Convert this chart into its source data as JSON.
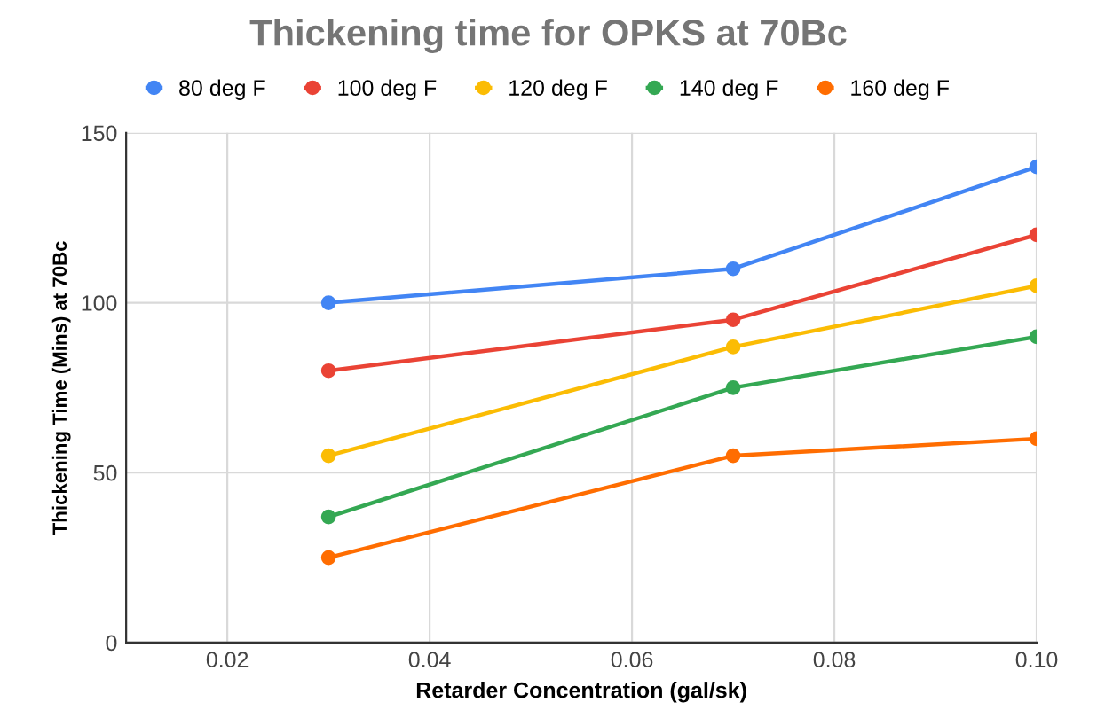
{
  "chart_data": {
    "type": "line",
    "title": "Thickening time for OPKS at 70Bc",
    "xlabel": "Retarder Concentration (gal/sk)",
    "ylabel": "Thickening Time (Mins) at 70Bc",
    "x": [
      0.03,
      0.07,
      0.1
    ],
    "series": [
      {
        "name": "80 deg F",
        "color": "#4285f4",
        "values": [
          100,
          110,
          140
        ]
      },
      {
        "name": "100 deg F",
        "color": "#ea4335",
        "values": [
          80,
          95,
          120
        ]
      },
      {
        "name": "120 deg F",
        "color": "#fbbc04",
        "values": [
          55,
          87,
          105
        ]
      },
      {
        "name": "140 deg F",
        "color": "#34a853",
        "values": [
          37,
          75,
          90
        ]
      },
      {
        "name": "160 deg F",
        "color": "#ff6d01",
        "values": [
          25,
          55,
          60
        ]
      }
    ],
    "xlim": [
      0.01,
      0.1
    ],
    "xticks": [
      {
        "value": 0.02,
        "label": "0.02"
      },
      {
        "value": 0.04,
        "label": "0.04"
      },
      {
        "value": 0.06,
        "label": "0.06"
      },
      {
        "value": 0.08,
        "label": "0.08"
      },
      {
        "value": 0.1,
        "label": "0.10"
      }
    ],
    "ylim": [
      0,
      150
    ],
    "yticks": [
      0,
      50,
      100,
      150
    ],
    "grid": true,
    "legend": "top",
    "marker": "circle",
    "line_style": "solid"
  }
}
